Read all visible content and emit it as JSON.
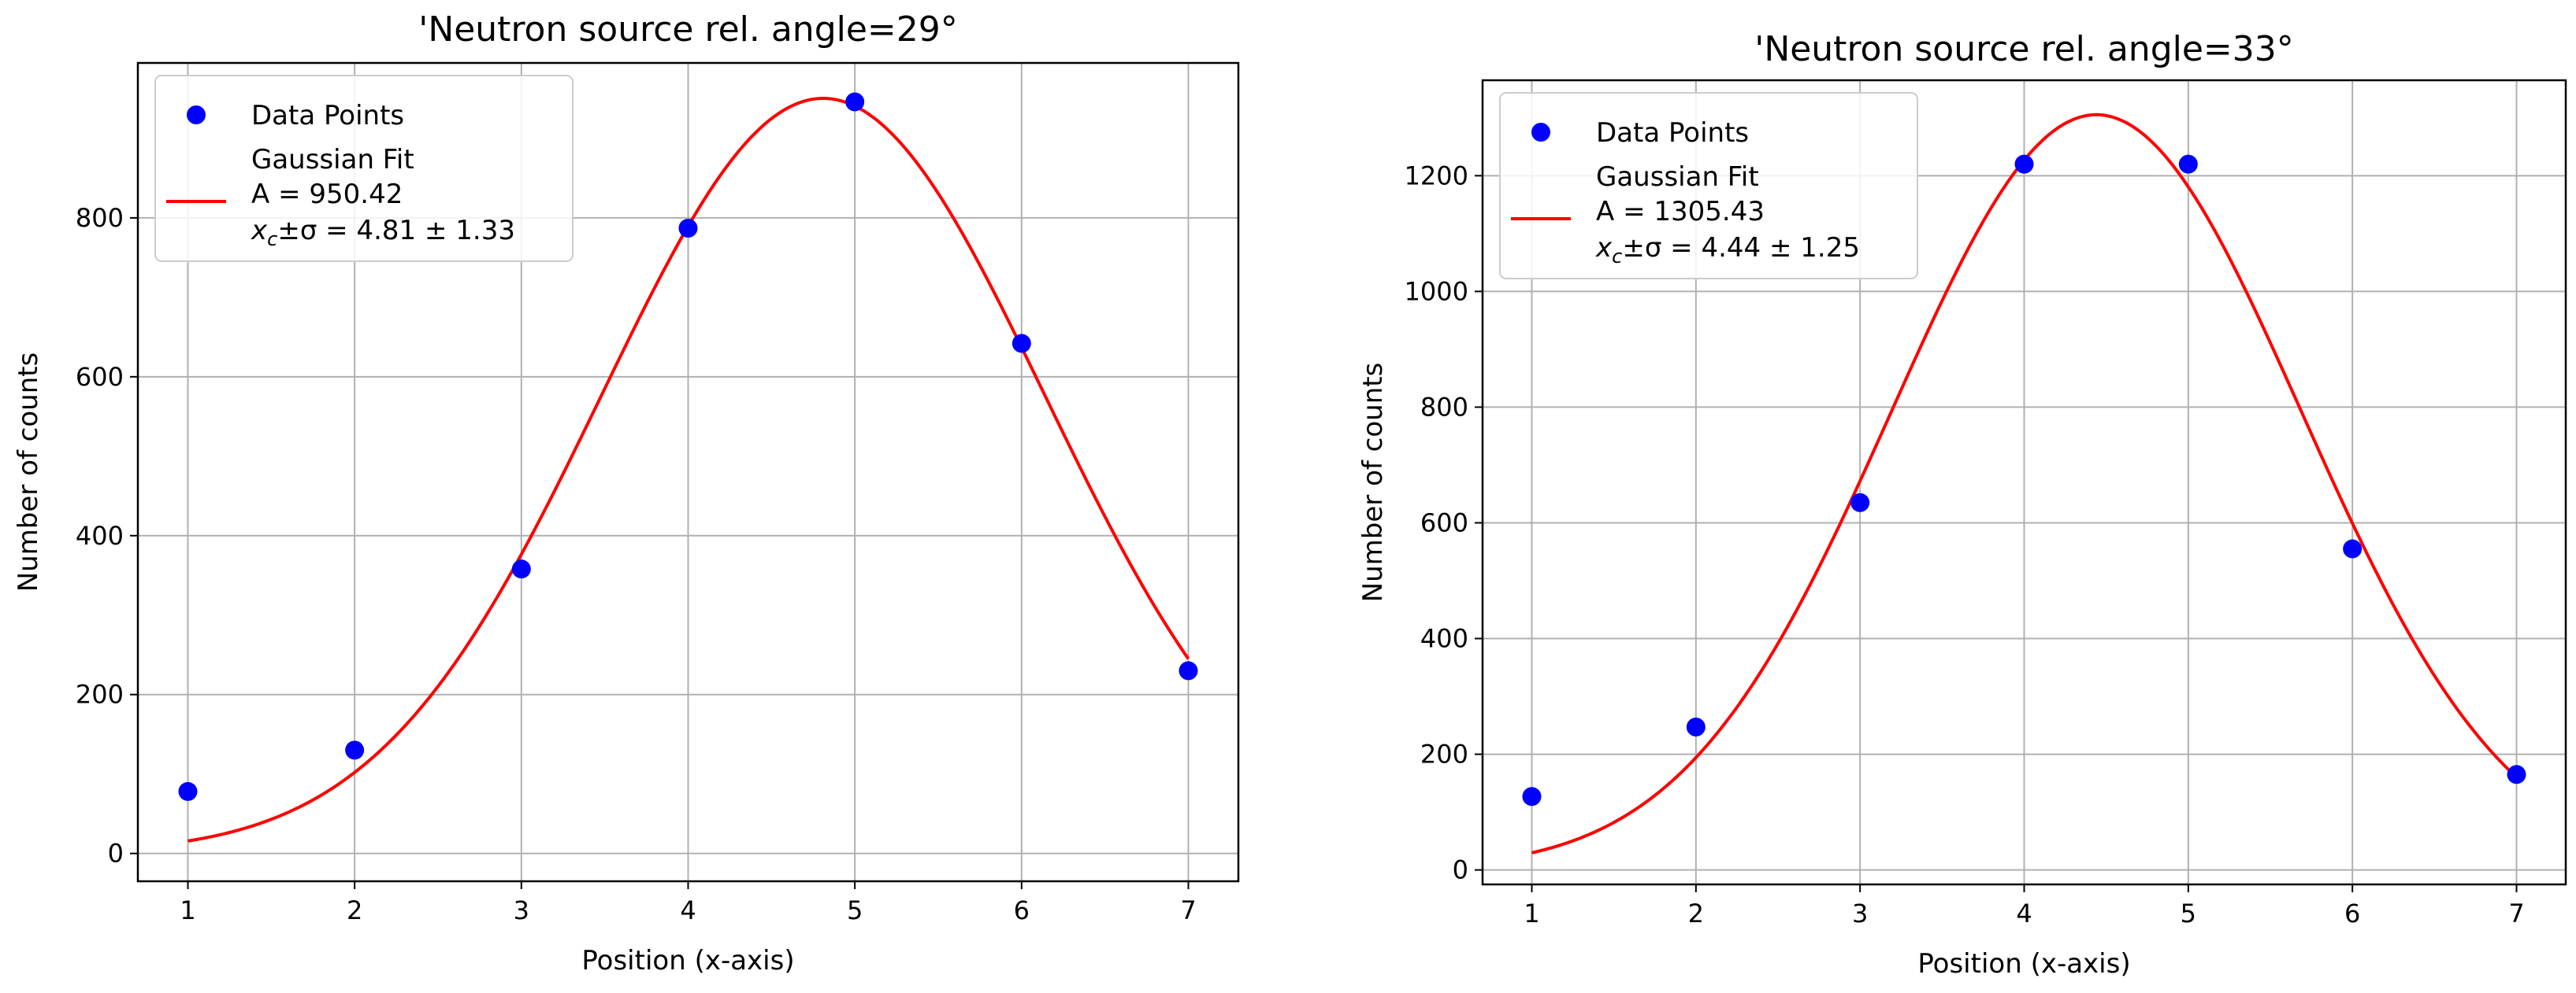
{
  "chart_data": [
    {
      "type": "scatter",
      "title": "'Neutron source rel. angle=29°",
      "xlabel": "Position (x-axis)",
      "ylabel": "Number of counts",
      "xlim": [
        0.7,
        7.3
      ],
      "ylim": [
        -35,
        995
      ],
      "xticks": [
        1,
        2,
        3,
        4,
        5,
        6,
        7
      ],
      "yticks": [
        0,
        200,
        400,
        600,
        800
      ],
      "grid": true,
      "legend_position": "upper-left",
      "series": [
        {
          "name": "Data Points",
          "kind": "scatter",
          "color": "#0000ff",
          "x": [
            1,
            2,
            3,
            4,
            5,
            6,
            7
          ],
          "y": [
            78,
            130,
            358,
            787,
            946,
            642,
            230
          ]
        },
        {
          "name": "Gaussian Fit",
          "kind": "line",
          "color": "#ff0000",
          "fit": {
            "A": 950.42,
            "xc": 4.81,
            "sigma": 1.33
          },
          "x_range": [
            1,
            7
          ]
        }
      ],
      "legend": {
        "points_label": "Data Points",
        "fit_label": "Gaussian Fit",
        "fit_amplitude_text": "A = 950.42",
        "fit_center_symbol": "x",
        "fit_center_subscript": "c",
        "fit_center_rest": "±σ = 4.81 ± 1.33"
      }
    },
    {
      "type": "scatter",
      "title": "'Neutron source rel. angle=33°",
      "xlabel": "Position (x-axis)",
      "ylabel": "Number of counts",
      "xlim": [
        0.7,
        7.3
      ],
      "ylim": [
        -25,
        1365
      ],
      "xticks": [
        1,
        2,
        3,
        4,
        5,
        6,
        7
      ],
      "yticks": [
        0,
        200,
        400,
        600,
        800,
        1000,
        1200
      ],
      "grid": true,
      "legend_position": "upper-left",
      "series": [
        {
          "name": "Data Points",
          "kind": "scatter",
          "color": "#0000ff",
          "x": [
            1,
            2,
            3,
            4,
            5,
            6,
            7
          ],
          "y": [
            127,
            247,
            635,
            1220,
            1220,
            555,
            165
          ]
        },
        {
          "name": "Gaussian Fit",
          "kind": "line",
          "color": "#ff0000",
          "fit": {
            "A": 1305.43,
            "xc": 4.44,
            "sigma": 1.25
          },
          "x_range": [
            1,
            7
          ]
        }
      ],
      "legend": {
        "points_label": "Data Points",
        "fit_label": "Gaussian Fit",
        "fit_amplitude_text": "A = 1305.43",
        "fit_center_symbol": "x",
        "fit_center_subscript": "c",
        "fit_center_rest": "±σ = 4.44 ± 1.25"
      }
    }
  ]
}
